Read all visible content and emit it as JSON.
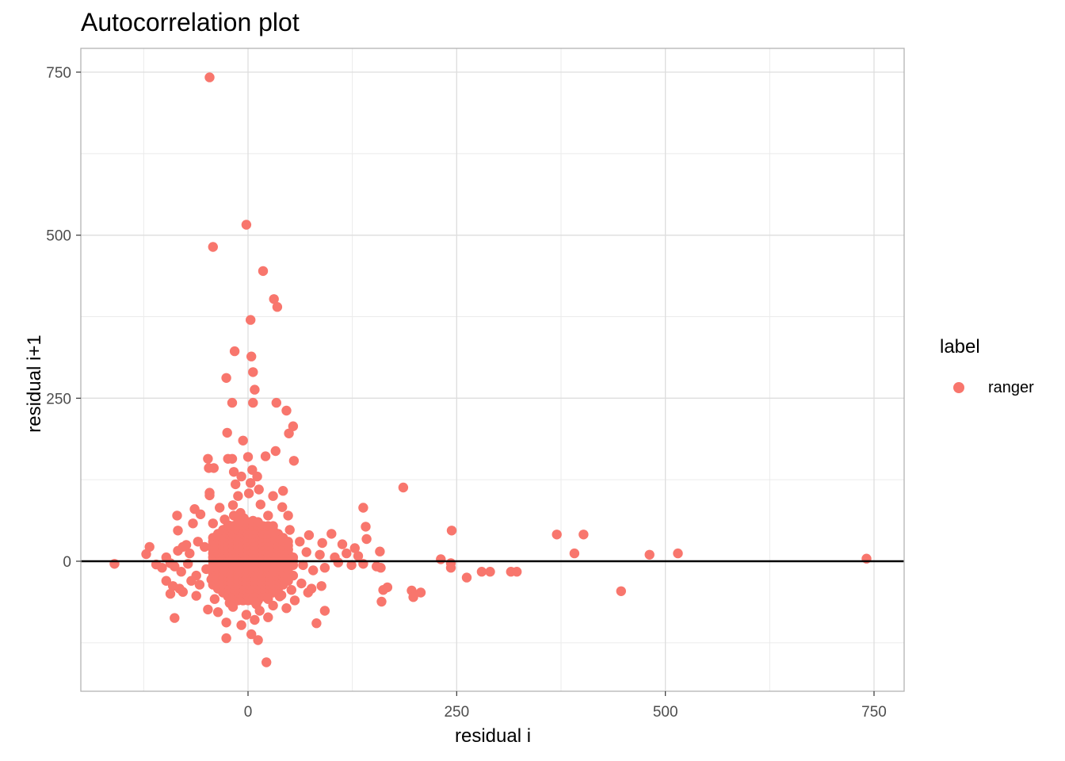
{
  "chart_data": {
    "type": "scatter",
    "title": "Autocorrelation plot",
    "xlabel": "residual i",
    "ylabel": "residual i+1",
    "xlim": [
      -200,
      790
    ],
    "ylim": [
      -200,
      785
    ],
    "x_ticks": [
      0,
      250,
      500,
      750
    ],
    "y_ticks": [
      0,
      250,
      500,
      750
    ],
    "grid": true,
    "hline": 0,
    "legend": {
      "title": "label",
      "position": "right",
      "entries": [
        {
          "name": "ranger",
          "color": "#F8766D"
        }
      ]
    },
    "series": [
      {
        "name": "ranger",
        "color": "#F8766D",
        "points": [
          [
            -46,
            742
          ],
          [
            -2,
            516
          ],
          [
            -42,
            482
          ],
          [
            18,
            445
          ],
          [
            31,
            402
          ],
          [
            35,
            390
          ],
          [
            3,
            370
          ],
          [
            -16,
            322
          ],
          [
            4,
            314
          ],
          [
            6,
            290
          ],
          [
            -26,
            281
          ],
          [
            8,
            263
          ],
          [
            -19,
            243
          ],
          [
            6,
            243
          ],
          [
            34,
            243
          ],
          [
            46,
            231
          ],
          [
            54,
            207
          ],
          [
            -25,
            197
          ],
          [
            49,
            196
          ],
          [
            -6,
            185
          ],
          [
            33,
            169
          ],
          [
            -48,
            157
          ],
          [
            -24,
            157
          ],
          [
            -19,
            157
          ],
          [
            0,
            160
          ],
          [
            21,
            161
          ],
          [
            55,
            154
          ],
          [
            -47,
            143
          ],
          [
            -41,
            143
          ],
          [
            -17,
            137
          ],
          [
            -8,
            130
          ],
          [
            5,
            140
          ],
          [
            11,
            130
          ],
          [
            -15,
            118
          ],
          [
            3,
            120
          ],
          [
            42,
            108
          ],
          [
            -46,
            105
          ],
          [
            -46,
            101
          ],
          [
            1,
            104
          ],
          [
            13,
            110
          ],
          [
            30,
            100
          ],
          [
            -12,
            100
          ],
          [
            186,
            113
          ],
          [
            138,
            82
          ],
          [
            -64,
            80
          ],
          [
            -34,
            82
          ],
          [
            -18,
            86
          ],
          [
            15,
            87
          ],
          [
            41,
            83
          ],
          [
            -9,
            74
          ],
          [
            -17,
            70
          ],
          [
            -85,
            70
          ],
          [
            -57,
            72
          ],
          [
            -28,
            64
          ],
          [
            -5,
            66
          ],
          [
            6,
            62
          ],
          [
            24,
            70
          ],
          [
            48,
            70
          ],
          [
            -66,
            58
          ],
          [
            -42,
            58
          ],
          [
            -23,
            55
          ],
          [
            14,
            50
          ],
          [
            30,
            54
          ],
          [
            50,
            48
          ],
          [
            -84,
            47
          ],
          [
            141,
            53
          ],
          [
            244,
            47
          ],
          [
            370,
            41
          ],
          [
            402,
            41
          ],
          [
            -74,
            25
          ],
          [
            -78,
            22
          ],
          [
            -60,
            30
          ],
          [
            -35,
            40
          ],
          [
            -2,
            38
          ],
          [
            22,
            42
          ],
          [
            38,
            34
          ],
          [
            62,
            30
          ],
          [
            73,
            40
          ],
          [
            100,
            42
          ],
          [
            89,
            28
          ],
          [
            142,
            34
          ],
          [
            113,
            26
          ],
          [
            128,
            20
          ],
          [
            -118,
            22
          ],
          [
            -122,
            11
          ],
          [
            -84,
            16
          ],
          [
            -98,
            6
          ],
          [
            -93,
            -3
          ],
          [
            -70,
            12
          ],
          [
            -52,
            22
          ],
          [
            -30,
            14
          ],
          [
            -10,
            20
          ],
          [
            10,
            28
          ],
          [
            28,
            24
          ],
          [
            48,
            18
          ],
          [
            70,
            14
          ],
          [
            86,
            10
          ],
          [
            104,
            6
          ],
          [
            118,
            12
          ],
          [
            132,
            8
          ],
          [
            158,
            15
          ],
          [
            231,
            3
          ],
          [
            243,
            -3
          ],
          [
            391,
            12
          ],
          [
            481,
            10
          ],
          [
            515,
            12
          ],
          [
            741,
            4
          ],
          [
            -160,
            -4
          ],
          [
            -110,
            -5
          ],
          [
            -103,
            -10
          ],
          [
            -88,
            -8
          ],
          [
            -80,
            -16
          ],
          [
            -72,
            -4
          ],
          [
            -62,
            -22
          ],
          [
            -50,
            -12
          ],
          [
            -38,
            -2
          ],
          [
            -26,
            -18
          ],
          [
            -14,
            -6
          ],
          [
            -4,
            -20
          ],
          [
            8,
            -12
          ],
          [
            18,
            -4
          ],
          [
            30,
            -16
          ],
          [
            42,
            -8
          ],
          [
            54,
            -22
          ],
          [
            66,
            -6
          ],
          [
            78,
            -14
          ],
          [
            92,
            -10
          ],
          [
            108,
            -2
          ],
          [
            124,
            -6
          ],
          [
            138,
            -4
          ],
          [
            154,
            -8
          ],
          [
            159,
            -10
          ],
          [
            243,
            -10
          ],
          [
            280,
            -16
          ],
          [
            290,
            -16
          ],
          [
            315,
            -16
          ],
          [
            322,
            -16
          ],
          [
            262,
            -25
          ],
          [
            -98,
            -30
          ],
          [
            -90,
            -38
          ],
          [
            -82,
            -42
          ],
          [
            -68,
            -30
          ],
          [
            -58,
            -36
          ],
          [
            -44,
            -28
          ],
          [
            -32,
            -42
          ],
          [
            -20,
            -32
          ],
          [
            -8,
            -46
          ],
          [
            6,
            -36
          ],
          [
            16,
            -50
          ],
          [
            28,
            -40
          ],
          [
            40,
            -52
          ],
          [
            52,
            -44
          ],
          [
            64,
            -34
          ],
          [
            76,
            -42
          ],
          [
            88,
            -38
          ],
          [
            -93,
            -50
          ],
          [
            -78,
            -47
          ],
          [
            -62,
            -53
          ],
          [
            -40,
            -58
          ],
          [
            -22,
            -64
          ],
          [
            -6,
            -60
          ],
          [
            10,
            -66
          ],
          [
            24,
            -58
          ],
          [
            38,
            -54
          ],
          [
            56,
            -60
          ],
          [
            72,
            -48
          ],
          [
            167,
            -40
          ],
          [
            162,
            -44
          ],
          [
            196,
            -45
          ],
          [
            207,
            -48
          ],
          [
            198,
            -55
          ],
          [
            447,
            -46
          ],
          [
            160,
            -62
          ],
          [
            -88,
            -87
          ],
          [
            -48,
            -74
          ],
          [
            -36,
            -78
          ],
          [
            -18,
            -70
          ],
          [
            -2,
            -82
          ],
          [
            14,
            -76
          ],
          [
            30,
            -68
          ],
          [
            46,
            -72
          ],
          [
            92,
            -76
          ],
          [
            -26,
            -94
          ],
          [
            -8,
            -98
          ],
          [
            8,
            -90
          ],
          [
            24,
            -86
          ],
          [
            82,
            -95
          ],
          [
            -26,
            -118
          ],
          [
            4,
            -112
          ],
          [
            12,
            -121
          ],
          [
            22,
            -155
          ]
        ]
      }
    ]
  }
}
